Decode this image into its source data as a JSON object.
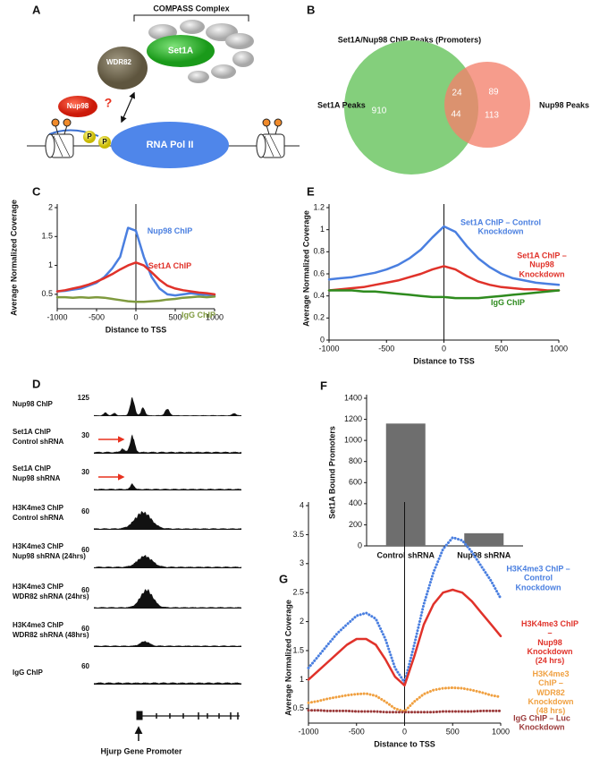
{
  "panel_a": {
    "label": "A",
    "complex": "COMPASS Complex",
    "set1a": "Set1A",
    "wdr82": "WDR82",
    "nup98": "Nup98",
    "question": "?",
    "phospho": [
      "P",
      "P"
    ],
    "pol": "RNA Pol II"
  },
  "panel_b": {
    "label": "B",
    "title": "Set1A/Nup98 ChIP Peaks (Promoters)",
    "left_label": "Set1A Peaks",
    "right_label": "Nup98 Peaks",
    "counts": {
      "set1a_only": 910,
      "overlap_top": 24,
      "overlap_bottom": 44,
      "nup98_top": 89,
      "nup98_bottom": 113
    }
  },
  "panel_d": {
    "label": "D",
    "gene": "Hjurp Gene Promoter",
    "tracks": [
      {
        "name": "Nup98 ChIP",
        "scale": 125
      },
      {
        "name": "Set1A ChIP\nControl shRNA",
        "scale": 30
      },
      {
        "name": "Set1A ChIP\nNup98 shRNA",
        "scale": 30
      },
      {
        "name": "H3K4me3 ChIP\nControl shRNA",
        "scale": 60
      },
      {
        "name": "H3K4me3 ChIP\nNup98 shRNA (24hrs)",
        "scale": 60
      },
      {
        "name": "H3K4me3 ChIP\nWDR82 shRNA (24hrs)",
        "scale": 60
      },
      {
        "name": "H3K4me3 ChIP\nWDR82 shRNA (48hrs)",
        "scale": 60
      },
      {
        "name": "IgG ChIP",
        "scale": 60
      }
    ]
  },
  "chart_data": [
    {
      "type": "line",
      "panel_label": "C",
      "xlabel": "Distance to TSS",
      "ylabel": "Average Normalized Coverage",
      "x": [
        -1000,
        -900,
        -800,
        -700,
        -600,
        -500,
        -400,
        -300,
        -200,
        -100,
        0,
        100,
        200,
        300,
        400,
        500,
        600,
        700,
        800,
        900,
        1000
      ],
      "xlim": [
        -1000,
        1000
      ],
      "xticks": [
        -1000,
        -500,
        0,
        500,
        1000
      ],
      "ylim": [
        0.25,
        2
      ],
      "yticks": [
        0.5,
        1,
        1.5,
        2
      ],
      "series": [
        {
          "name": "Nup98 ChIP",
          "color": "#4a7fe0",
          "line_style": "solid",
          "values": [
            0.55,
            0.56,
            0.58,
            0.6,
            0.65,
            0.7,
            0.8,
            0.95,
            1.15,
            1.65,
            1.6,
            1.15,
            0.8,
            0.6,
            0.5,
            0.48,
            0.5,
            0.52,
            0.5,
            0.49,
            0.48
          ]
        },
        {
          "name": "Set1A ChIP",
          "color": "#e0322a",
          "line_style": "solid",
          "values": [
            0.55,
            0.57,
            0.6,
            0.63,
            0.67,
            0.72,
            0.78,
            0.85,
            0.93,
            1.0,
            1.05,
            1.0,
            0.88,
            0.75,
            0.65,
            0.6,
            0.57,
            0.55,
            0.53,
            0.52,
            0.5
          ]
        },
        {
          "name": "IgG ChIP",
          "color": "#7f9a3e",
          "line_style": "solid",
          "values": [
            0.45,
            0.45,
            0.44,
            0.45,
            0.44,
            0.45,
            0.44,
            0.42,
            0.4,
            0.38,
            0.37,
            0.37,
            0.38,
            0.39,
            0.41,
            0.42,
            0.44,
            0.45,
            0.46,
            0.45,
            0.46
          ]
        }
      ]
    },
    {
      "type": "line",
      "panel_label": "E",
      "xlabel": "Distance to TSS",
      "ylabel": "Average Normalized Coverage",
      "x": [
        -1000,
        -900,
        -800,
        -700,
        -600,
        -500,
        -400,
        -300,
        -200,
        -100,
        0,
        100,
        200,
        300,
        400,
        500,
        600,
        700,
        800,
        900,
        1000
      ],
      "xlim": [
        -1000,
        1000
      ],
      "xticks": [
        -1000,
        -500,
        0,
        500,
        1000
      ],
      "ylim": [
        0,
        1.2
      ],
      "yticks": [
        0,
        0.2,
        0.4,
        0.6,
        0.8,
        1,
        1.2
      ],
      "series": [
        {
          "name": "Set1A ChIP – Control Knockdown",
          "color": "#4a7fe0",
          "line_style": "solid",
          "values": [
            0.55,
            0.56,
            0.57,
            0.59,
            0.61,
            0.64,
            0.68,
            0.74,
            0.82,
            0.93,
            1.03,
            0.98,
            0.85,
            0.74,
            0.66,
            0.6,
            0.56,
            0.54,
            0.52,
            0.51,
            0.5
          ]
        },
        {
          "name": "Set1A ChIP – Nup98 Knockdown",
          "color": "#e0322a",
          "line_style": "solid",
          "values": [
            0.45,
            0.46,
            0.47,
            0.48,
            0.5,
            0.52,
            0.54,
            0.57,
            0.6,
            0.64,
            0.67,
            0.64,
            0.58,
            0.53,
            0.5,
            0.48,
            0.47,
            0.46,
            0.46,
            0.45,
            0.45
          ]
        },
        {
          "name": "IgG ChIP",
          "color": "#2e8b1e",
          "line_style": "solid",
          "values": [
            0.45,
            0.45,
            0.45,
            0.44,
            0.44,
            0.43,
            0.42,
            0.41,
            0.4,
            0.39,
            0.39,
            0.38,
            0.38,
            0.38,
            0.39,
            0.4,
            0.41,
            0.42,
            0.43,
            0.44,
            0.45
          ]
        }
      ]
    },
    {
      "type": "bar",
      "panel_label": "F",
      "ylabel": "Set1A Bound Promoters",
      "categories": [
        "Control shRNA",
        "Nup98 shRNA"
      ],
      "values": [
        1160,
        120
      ],
      "color": "#6e6e6e",
      "ylim": [
        0,
        1400
      ],
      "yticks": [
        0,
        200,
        400,
        600,
        800,
        1000,
        1200,
        1400
      ]
    },
    {
      "type": "line",
      "panel_label": "G",
      "xlabel": "Distance to TSS",
      "ylabel": "Average Normalized Coverage",
      "x": [
        -1000,
        -900,
        -800,
        -700,
        -600,
        -500,
        -400,
        -300,
        -200,
        -100,
        0,
        100,
        200,
        300,
        400,
        500,
        600,
        700,
        800,
        900,
        1000
      ],
      "xlim": [
        -1000,
        1000
      ],
      "xticks": [
        -1000,
        -500,
        0,
        500,
        1000
      ],
      "ylim": [
        0.25,
        4
      ],
      "yticks": [
        0.5,
        1,
        1.5,
        2,
        2.5,
        3,
        3.5,
        4
      ],
      "series": [
        {
          "name": "H3K4me3 ChIP –\nControl Knockdown",
          "color": "#4a7fe0",
          "line_style": "dotted",
          "values": [
            1.2,
            1.4,
            1.6,
            1.8,
            1.95,
            2.1,
            2.15,
            2.05,
            1.7,
            1.2,
            0.95,
            1.6,
            2.3,
            2.85,
            3.25,
            3.45,
            3.4,
            3.2,
            2.95,
            2.7,
            2.4
          ]
        },
        {
          "name": "H3K4me3 ChIP –\nNup98 Knockdown (24 hrs)",
          "color": "#e0322a",
          "line_style": "solid",
          "values": [
            1.0,
            1.15,
            1.3,
            1.45,
            1.6,
            1.7,
            1.7,
            1.6,
            1.35,
            1.05,
            0.9,
            1.4,
            1.95,
            2.3,
            2.5,
            2.55,
            2.5,
            2.35,
            2.15,
            1.95,
            1.75
          ]
        },
        {
          "name": "H3K4me3 ChIP –\nWDR82 Knockdown (48 hrs)",
          "color": "#f0a040",
          "line_style": "dotted",
          "values": [
            0.6,
            0.63,
            0.67,
            0.7,
            0.73,
            0.75,
            0.76,
            0.72,
            0.62,
            0.5,
            0.45,
            0.62,
            0.75,
            0.82,
            0.85,
            0.86,
            0.85,
            0.82,
            0.78,
            0.73,
            0.7
          ]
        },
        {
          "name": "IgG ChIP – Luc Knockdown",
          "color": "#9b3a3a",
          "line_style": "dotted",
          "values": [
            0.47,
            0.47,
            0.46,
            0.46,
            0.46,
            0.45,
            0.45,
            0.45,
            0.44,
            0.44,
            0.44,
            0.44,
            0.44,
            0.44,
            0.45,
            0.45,
            0.45,
            0.45,
            0.46,
            0.46,
            0.46
          ]
        }
      ]
    }
  ]
}
